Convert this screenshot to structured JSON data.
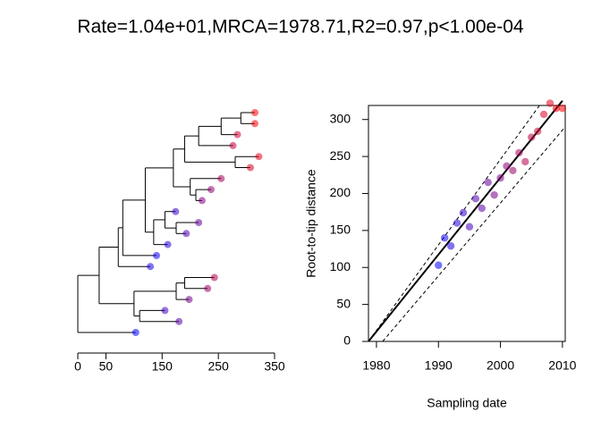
{
  "title": "Rate=1.04e+01,MRCA=1978.71,R2=0.97,p<1.00e-04",
  "chart_data": [
    {
      "type": "tree",
      "xlim": [
        0,
        350
      ],
      "xticks": [
        0,
        50,
        150,
        250,
        350
      ],
      "tree": {
        "distance": 0,
        "children": [
          {
            "distance": 38,
            "children": [
              {
                "distance": 72,
                "children": [
                  {
                    "distance": 80,
                    "children": [
                      {
                        "distance": 120,
                        "children": [
                          {
                            "distance": 170,
                            "children": [
                              {
                                "distance": 190,
                                "children": [
                                  {
                                    "distance": 215,
                                    "children": [
                                      {
                                        "distance": 255,
                                        "children": [
                                          {
                                            "distance": 290,
                                            "children": [
                                              {
                                                "distance": 315,
                                                "color": "#ff0000"
                                              },
                                              {
                                                "distance": 315,
                                                "color": "#f2000d"
                                              }
                                            ]
                                          },
                                          {
                                            "distance": 284,
                                            "color": "#cc0033"
                                          }
                                        ]
                                      },
                                      {
                                        "distance": 276,
                                        "color": "#bf0040"
                                      }
                                    ]
                                  },
                                  {
                                    "distance": 280,
                                    "children": [
                                      {
                                        "distance": 322,
                                        "color": "#e5001a"
                                      },
                                      {
                                        "distance": 307,
                                        "color": "#d90026"
                                      }
                                    ]
                                  }
                                ]
                              },
                              {
                                "distance": 200,
                                "children": [
                                  {
                                    "distance": 255,
                                    "color": "#a60059"
                                  },
                                  {
                                    "distance": 210,
                                    "children": [
                                      {
                                        "distance": 237,
                                        "color": "#8c0073"
                                      },
                                      {
                                        "distance": 221,
                                        "color": "#80007f"
                                      }
                                    ]
                                  }
                                ]
                              }
                            ]
                          },
                          {
                            "distance": 135,
                            "children": [
                              {
                                "distance": 155,
                                "children": [
                                  {
                                    "distance": 174,
                                    "color": "#3300cc"
                                  },
                                  {
                                    "distance": 175,
                                    "children": [
                                      {
                                        "distance": 215,
                                        "color": "#660099"
                                      },
                                      {
                                        "distance": 193,
                                        "color": "#4d00b2"
                                      }
                                    ]
                                  }
                                ]
                              },
                              {
                                "distance": 160,
                                "color": "#2600d9"
                              }
                            ]
                          }
                        ]
                      },
                      {
                        "distance": 140,
                        "color": "#0d00f2"
                      }
                    ]
                  },
                  {
                    "distance": 129,
                    "color": "#1a00e5"
                  }
                ]
              },
              {
                "distance": 100,
                "children": [
                  {
                    "distance": 175,
                    "children": [
                      {
                        "distance": 190,
                        "children": [
                          {
                            "distance": 243,
                            "color": "#b2004d"
                          },
                          {
                            "distance": 231,
                            "color": "#990066"
                          }
                        ]
                      },
                      {
                        "distance": 198,
                        "color": "#73008c"
                      }
                    ]
                  },
                  {
                    "distance": 110,
                    "children": [
                      {
                        "distance": 155,
                        "color": "#4000bf"
                      },
                      {
                        "distance": 180,
                        "color": "#5900a6"
                      }
                    ]
                  }
                ]
              }
            ]
          },
          {
            "distance": 103,
            "color": "#0000ff"
          }
        ]
      }
    },
    {
      "type": "scatter",
      "x_label": "Sampling date",
      "y_label": "Root-to-tip distance",
      "xlim": [
        1978.71,
        2010.45
      ],
      "ylim": [
        0,
        319
      ],
      "xticks": [
        1980,
        1990,
        2000,
        2010
      ],
      "yticks": [
        0,
        50,
        100,
        150,
        200,
        250,
        300
      ],
      "series": [
        {
          "x": [
            1990,
            1991,
            1992,
            1993,
            1994,
            1995,
            1996,
            1997,
            1998,
            1999,
            2000,
            2001,
            2002,
            2003,
            2004,
            2005,
            2006,
            2007,
            2008,
            2009,
            2010
          ],
          "values": [
            103,
            140,
            129,
            160,
            174,
            155,
            193,
            180,
            215,
            198,
            221,
            237,
            231,
            255,
            243,
            276,
            284,
            307,
            322,
            315,
            315
          ],
          "colors": [
            "#0000ff",
            "#0d00f2",
            "#1a00e5",
            "#2600d9",
            "#3300cc",
            "#4000bf",
            "#4d00b2",
            "#5900a6",
            "#660099",
            "#73008c",
            "#80007f",
            "#8c0073",
            "#990066",
            "#a60059",
            "#b2004d",
            "#bf0040",
            "#cc0033",
            "#d90026",
            "#e5001a",
            "#f2000d",
            "#ff0000"
          ]
        }
      ],
      "lines": [
        {
          "x": [
            1978.71,
            2010
          ],
          "values": [
            0,
            325.4
          ],
          "style": "solid"
        },
        {
          "x": [
            1978.71,
            2006.3
          ],
          "values": [
            0,
            319
          ],
          "style": "dashed"
        },
        {
          "x": [
            1981,
            2010.45
          ],
          "values": [
            0,
            290
          ],
          "style": "dashed"
        }
      ]
    }
  ]
}
